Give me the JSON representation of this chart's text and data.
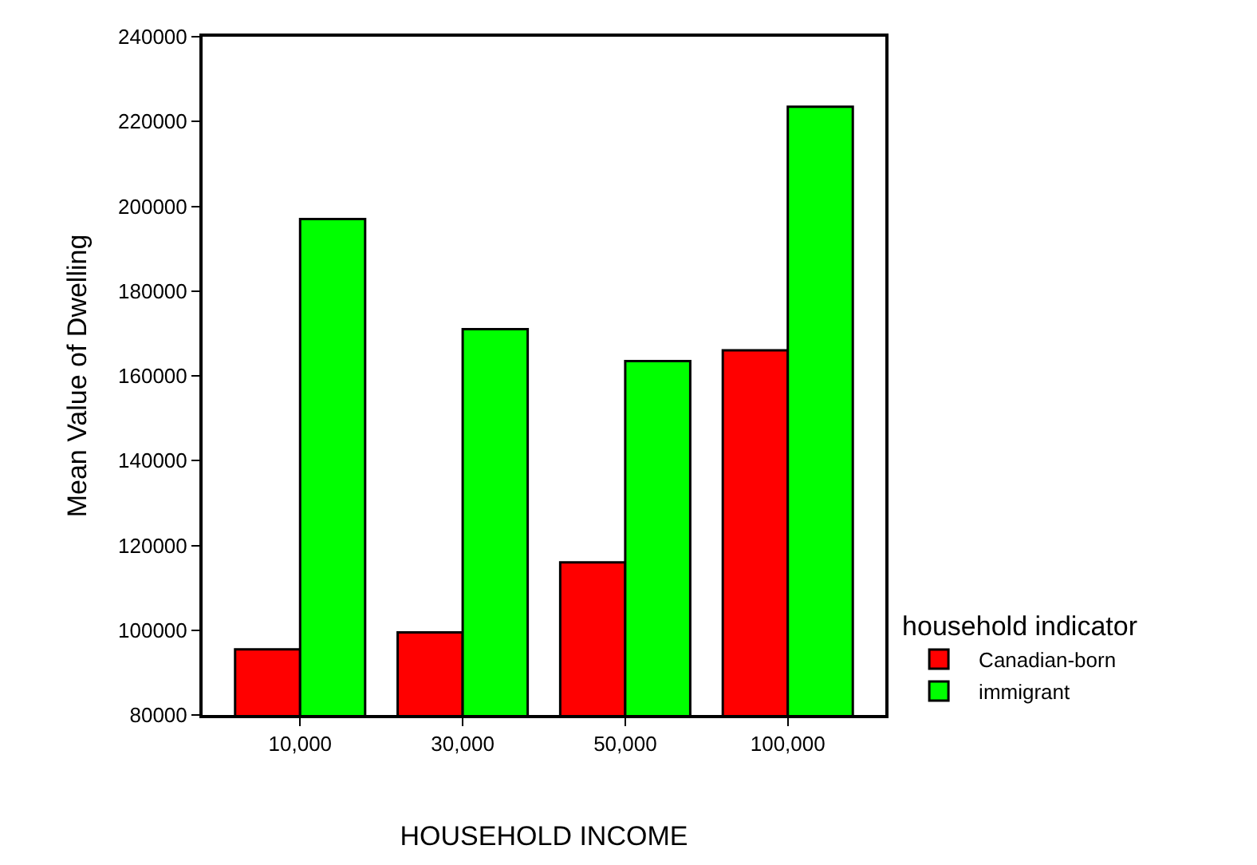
{
  "chart_data": {
    "type": "bar",
    "xlabel": "HOUSEHOLD INCOME",
    "ylabel": "Mean Value of Dwelling",
    "legend_title": "household indicator",
    "categories": [
      "10,000",
      "30,000",
      "50,000",
      "100,000"
    ],
    "series": [
      {
        "name": "Canadian-born",
        "color": "#ff0000",
        "values": [
          95500,
          99500,
          116000,
          166000
        ]
      },
      {
        "name": "immigrant",
        "color": "#00ff00",
        "values": [
          197000,
          171000,
          163500,
          223500
        ]
      }
    ],
    "ylim": [
      80000,
      240000
    ],
    "yticks": [
      80000,
      100000,
      120000,
      140000,
      160000,
      180000,
      200000,
      220000,
      240000
    ],
    "legend": "bottom right"
  }
}
